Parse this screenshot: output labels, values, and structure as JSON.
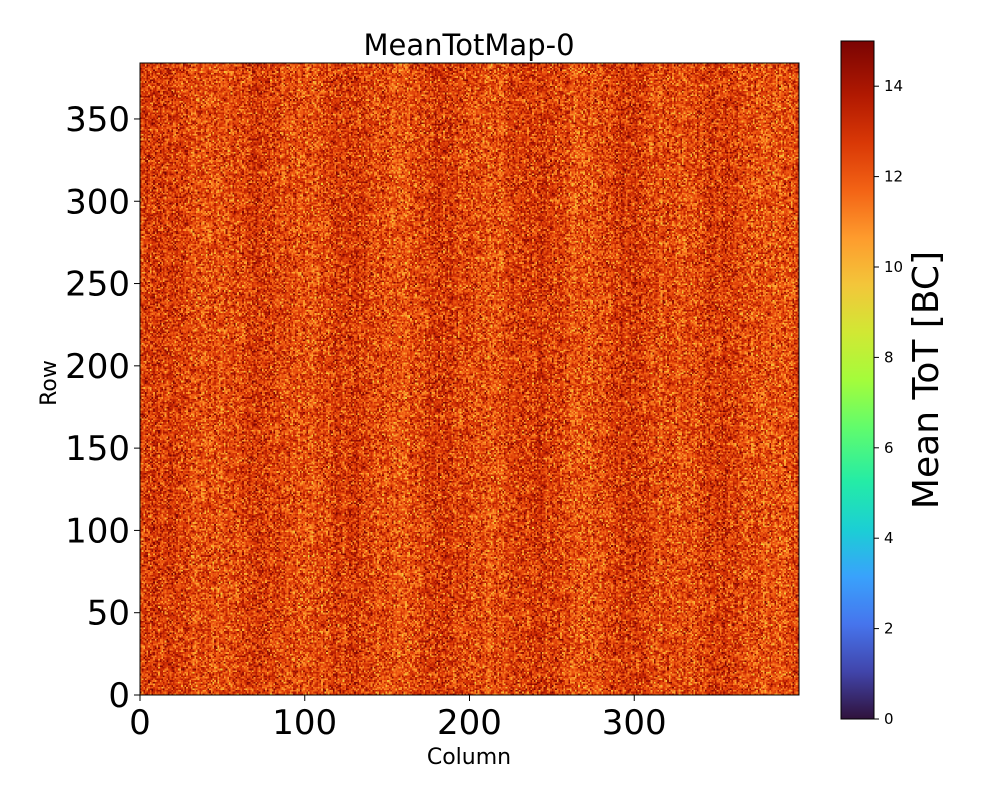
{
  "chart_data": {
    "type": "heatmap",
    "title": "MeanTotMap-0",
    "xlabel": "Column",
    "ylabel": "Row",
    "xlim": [
      0,
      400
    ],
    "ylim": [
      0,
      384
    ],
    "x_ticks": [
      0,
      100,
      200,
      300
    ],
    "y_ticks": [
      0,
      50,
      100,
      150,
      200,
      250,
      300,
      350
    ],
    "grid_columns": 400,
    "grid_rows": 384,
    "value_range_approx": [
      9,
      15
    ],
    "value_mean_approx": 12.5,
    "colorbar": {
      "label": "Mean ToT [BC]",
      "vmin": 0,
      "vmax": 15,
      "ticks": [
        0,
        2,
        4,
        6,
        8,
        10,
        12,
        14
      ],
      "colormap": "turbo",
      "colormap_stops": [
        {
          "v": 0.0,
          "color": "#30123b"
        },
        {
          "v": 0.07,
          "color": "#4145ab"
        },
        {
          "v": 0.14,
          "color": "#4675ed"
        },
        {
          "v": 0.21,
          "color": "#39a2fc"
        },
        {
          "v": 0.28,
          "color": "#1bcfd4"
        },
        {
          "v": 0.35,
          "color": "#24eca6"
        },
        {
          "v": 0.43,
          "color": "#61fc6c"
        },
        {
          "v": 0.5,
          "color": "#a4fc3b"
        },
        {
          "v": 0.57,
          "color": "#d1e834"
        },
        {
          "v": 0.64,
          "color": "#f3c63a"
        },
        {
          "v": 0.71,
          "color": "#fe9b2d"
        },
        {
          "v": 0.78,
          "color": "#f36315"
        },
        {
          "v": 0.85,
          "color": "#d93806"
        },
        {
          "v": 0.92,
          "color": "#b11901"
        },
        {
          "v": 1.0,
          "color": "#7a0403"
        }
      ]
    }
  }
}
